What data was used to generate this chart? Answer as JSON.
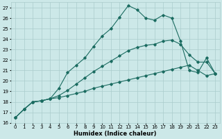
{
  "xlabel": "Humidex (Indice chaleur)",
  "bg_color": "#cce8e8",
  "grid_color": "#aacccc",
  "line_color": "#1a6b60",
  "xlim": [
    -0.5,
    23.5
  ],
  "ylim": [
    16,
    27.5
  ],
  "yticks": [
    16,
    17,
    18,
    19,
    20,
    21,
    22,
    23,
    24,
    25,
    26,
    27
  ],
  "xticks": [
    0,
    1,
    2,
    3,
    4,
    5,
    6,
    7,
    8,
    9,
    10,
    11,
    12,
    13,
    14,
    15,
    16,
    17,
    18,
    19,
    20,
    21,
    22,
    23
  ],
  "line_top_x": [
    0,
    1,
    2,
    3,
    4,
    5,
    6,
    7,
    8,
    9,
    10,
    11,
    12,
    13,
    14,
    15,
    16,
    17,
    18,
    19,
    20,
    21,
    22,
    23
  ],
  "line_top_y": [
    16.5,
    17.3,
    18.0,
    18.1,
    18.3,
    19.3,
    20.8,
    21.5,
    22.2,
    23.3,
    24.3,
    25.0,
    26.1,
    27.2,
    26.8,
    26.0,
    25.8,
    26.3,
    26.0,
    23.8,
    21.0,
    20.8,
    22.2,
    20.7
  ],
  "line_mid_x": [
    0,
    1,
    2,
    3,
    4,
    5,
    6,
    7,
    8,
    9,
    10,
    11,
    12,
    13,
    14,
    15,
    16,
    17,
    18,
    19,
    20,
    21,
    22,
    23
  ],
  "line_mid_y": [
    16.5,
    17.3,
    18.0,
    18.1,
    18.3,
    18.6,
    19.1,
    19.7,
    20.3,
    20.9,
    21.4,
    21.9,
    22.4,
    22.9,
    23.2,
    23.4,
    23.5,
    23.8,
    23.9,
    23.5,
    22.5,
    21.8,
    21.8,
    20.7
  ],
  "line_bot_x": [
    0,
    1,
    2,
    3,
    4,
    5,
    6,
    7,
    8,
    9,
    10,
    11,
    12,
    13,
    14,
    15,
    16,
    17,
    18,
    19,
    20,
    21,
    22,
    23
  ],
  "line_bot_y": [
    16.5,
    17.3,
    18.0,
    18.1,
    18.3,
    18.4,
    18.6,
    18.8,
    19.0,
    19.3,
    19.5,
    19.7,
    19.9,
    20.1,
    20.3,
    20.5,
    20.7,
    20.9,
    21.1,
    21.3,
    21.5,
    21.0,
    20.5,
    20.7
  ]
}
